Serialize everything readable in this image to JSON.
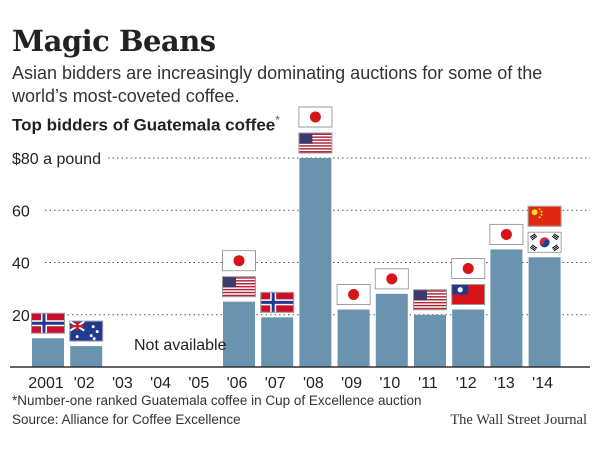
{
  "title": "Magic Beans",
  "subtitle": "Asian bidders are increasingly dominating auctions for some of the world’s most-coveted coffee.",
  "chart_title": "Top bidders of Guatemala coffee",
  "chart_title_marker": "*",
  "footnote": "*Number-one ranked Guatemala coffee in Cup of Excellence auction",
  "source": "Source: Alliance for Coffee Excellence",
  "credit": "The Wall Street Journal",
  "colors": {
    "bar": "#6a93b0",
    "grid": "#555555",
    "text": "#222222"
  },
  "chart_data": {
    "type": "bar",
    "categories": [
      "2001",
      "'02",
      "'03",
      "'04",
      "'05",
      "'06",
      "'07",
      "'08",
      "'09",
      "'10",
      "'11",
      "'12",
      "'13",
      "'14"
    ],
    "values": [
      11,
      8,
      null,
      null,
      null,
      25,
      19,
      80,
      22,
      28,
      20,
      22,
      45,
      42
    ],
    "top_bidder_flags": [
      [
        "norway"
      ],
      [
        "australia"
      ],
      [],
      [],
      [],
      [
        "usa",
        "japan"
      ],
      [
        "norway"
      ],
      [
        "usa",
        "japan"
      ],
      [
        "japan"
      ],
      [
        "japan"
      ],
      [
        "usa"
      ],
      [
        "taiwan",
        "japan"
      ],
      [
        "japan"
      ],
      [
        "south-korea",
        "china"
      ]
    ],
    "ylim": [
      0,
      80
    ],
    "yticks": [
      0,
      20,
      40,
      60,
      80
    ],
    "ytick_labels": [
      "",
      "20",
      "40",
      "60",
      "$80 a pound"
    ],
    "grid": "dotted horizontal",
    "annotation": "Not available"
  }
}
